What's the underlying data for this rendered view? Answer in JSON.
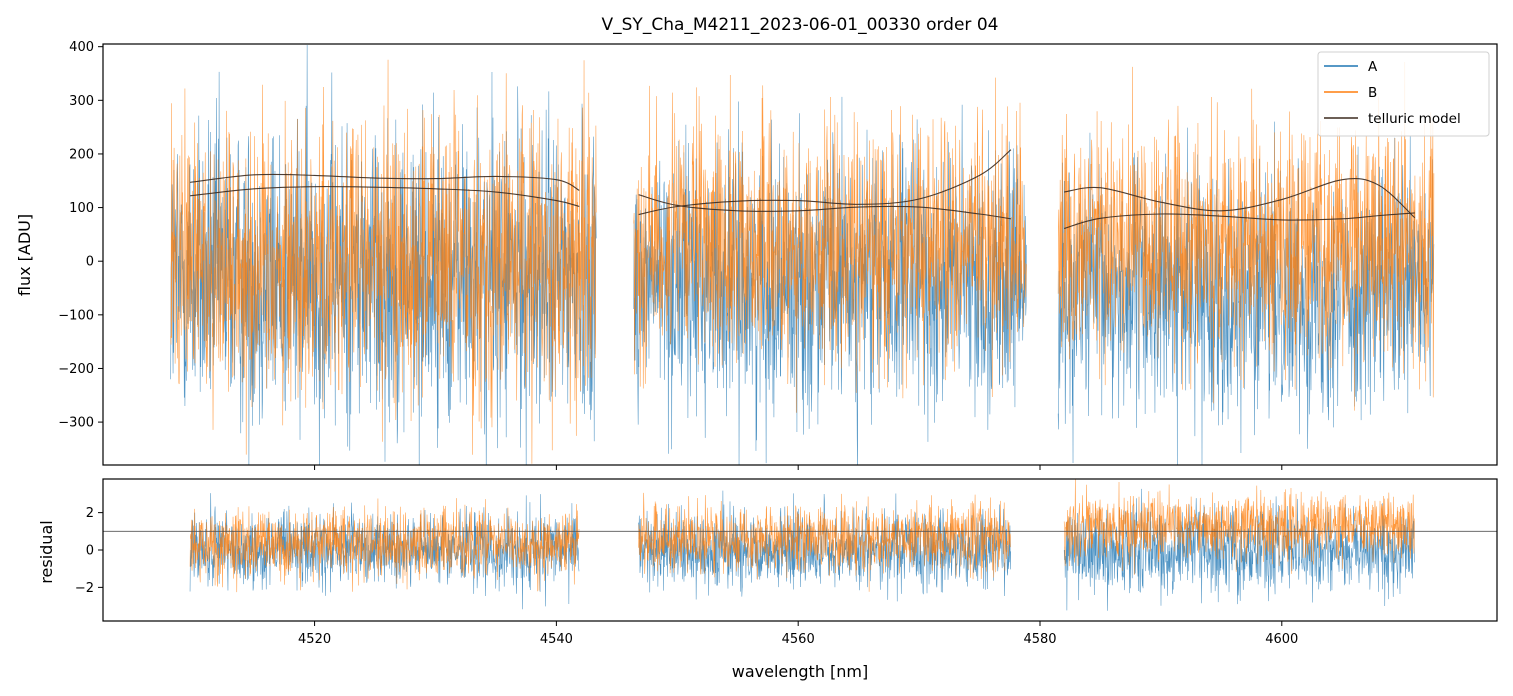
{
  "chart_data": [
    {
      "type": "line",
      "panel": "flux",
      "title": "V_SY_Cha_M4211_2023-06-01_00330  order 04",
      "xlabel": "",
      "ylabel": "flux [ADU]",
      "xlim": [
        4502.5,
        4617.8
      ],
      "ylim": [
        -380,
        405
      ],
      "yticks": [
        -300,
        -200,
        -100,
        0,
        100,
        200,
        300,
        400
      ],
      "yticklabels": [
        "−300",
        "−200",
        "−100",
        "0",
        "100",
        "200",
        "300",
        "400"
      ],
      "legend": {
        "position": "top-right",
        "entries": [
          "A",
          "B",
          "telluric model"
        ]
      },
      "noise_segments": [
        {
          "series": "A",
          "x_start": 4508.1,
          "x_end": 4543.3,
          "center": -30,
          "sigma": 140
        },
        {
          "series": "A",
          "x_start": 4546.4,
          "x_end": 4578.9,
          "center": -40,
          "sigma": 120
        },
        {
          "series": "A",
          "x_start": 4581.5,
          "x_end": 4612.6,
          "center": -60,
          "sigma": 110
        },
        {
          "series": "B",
          "x_start": 4508.1,
          "x_end": 4543.3,
          "center": 0,
          "sigma": 135
        },
        {
          "series": "B",
          "x_start": 4546.4,
          "x_end": 4578.9,
          "center": 30,
          "sigma": 110
        },
        {
          "series": "B",
          "x_start": 4581.5,
          "x_end": 4612.6,
          "center": 40,
          "sigma": 110
        }
      ],
      "series": [
        {
          "name": "A",
          "color": "#1f77b4"
        },
        {
          "name": "B",
          "color": "#ff7f0e"
        },
        {
          "name": "telluric model",
          "color": "#3b2a1f",
          "segments": [
            {
              "x": [
                4509.7,
                4515,
                4520,
                4525,
                4530,
                4535,
                4540,
                4541.9
              ],
              "y": [
                147,
                161,
                160,
                155,
                154,
                158,
                152,
                132
              ]
            },
            {
              "x": [
                4509.7,
                4515,
                4520,
                4525,
                4530,
                4535,
                4540,
                4541.9
              ],
              "y": [
                122,
                135,
                139,
                138,
                135,
                129,
                113,
                102
              ]
            },
            {
              "x": [
                4546.8,
                4550,
                4555,
                4560,
                4565,
                4570,
                4575,
                4577.6
              ],
              "y": [
                87,
                102,
                112,
                113,
                106,
                116,
                160,
                208
              ]
            },
            {
              "x": [
                4546.8,
                4550,
                4555,
                4560,
                4565,
                4570,
                4575,
                4577.6
              ],
              "y": [
                124,
                104,
                94,
                94,
                101,
                101,
                88,
                79
              ]
            },
            {
              "x": [
                4582.0,
                4585,
                4590,
                4595,
                4600,
                4605,
                4608,
                4611.0
              ],
              "y": [
                129,
                137,
                110,
                94,
                115,
                152,
                142,
                81
              ]
            },
            {
              "x": [
                4582.0,
                4585,
                4590,
                4595,
                4600,
                4605,
                4608,
                4611.0
              ],
              "y": [
                61,
                80,
                88,
                84,
                77,
                79,
                85,
                90
              ]
            }
          ]
        }
      ]
    },
    {
      "type": "line",
      "panel": "residual",
      "xlabel": "wavelength [nm]",
      "ylabel": "residual",
      "xlim": [
        4502.5,
        4617.8
      ],
      "ylim": [
        -3.8,
        3.8
      ],
      "xticks": [
        4520,
        4540,
        4560,
        4580,
        4600
      ],
      "xticklabels": [
        "4520",
        "4540",
        "4560",
        "4580",
        "4600"
      ],
      "yticks": [
        -2,
        0,
        2
      ],
      "yticklabels": [
        "−2",
        "0",
        "2"
      ],
      "reference_line": 1,
      "noise_segments": [
        {
          "series": "A",
          "x_start": 4509.7,
          "x_end": 4541.9,
          "center": 0,
          "sigma": 1.0
        },
        {
          "series": "A",
          "x_start": 4546.8,
          "x_end": 4577.6,
          "center": 0,
          "sigma": 1.05
        },
        {
          "series": "A",
          "x_start": 4582.0,
          "x_end": 4611.0,
          "center": 0,
          "sigma": 1.1
        },
        {
          "series": "B",
          "x_start": 4509.7,
          "x_end": 4541.9,
          "center": 0.3,
          "sigma": 0.9
        },
        {
          "series": "B",
          "x_start": 4546.8,
          "x_end": 4577.6,
          "center": 0.6,
          "sigma": 0.9
        },
        {
          "series": "B",
          "x_start": 4582.0,
          "x_end": 4611.0,
          "center": 1.2,
          "sigma": 0.9
        }
      ],
      "series": [
        {
          "name": "A",
          "color": "#1f77b4"
        },
        {
          "name": "B",
          "color": "#ff7f0e"
        }
      ]
    }
  ]
}
